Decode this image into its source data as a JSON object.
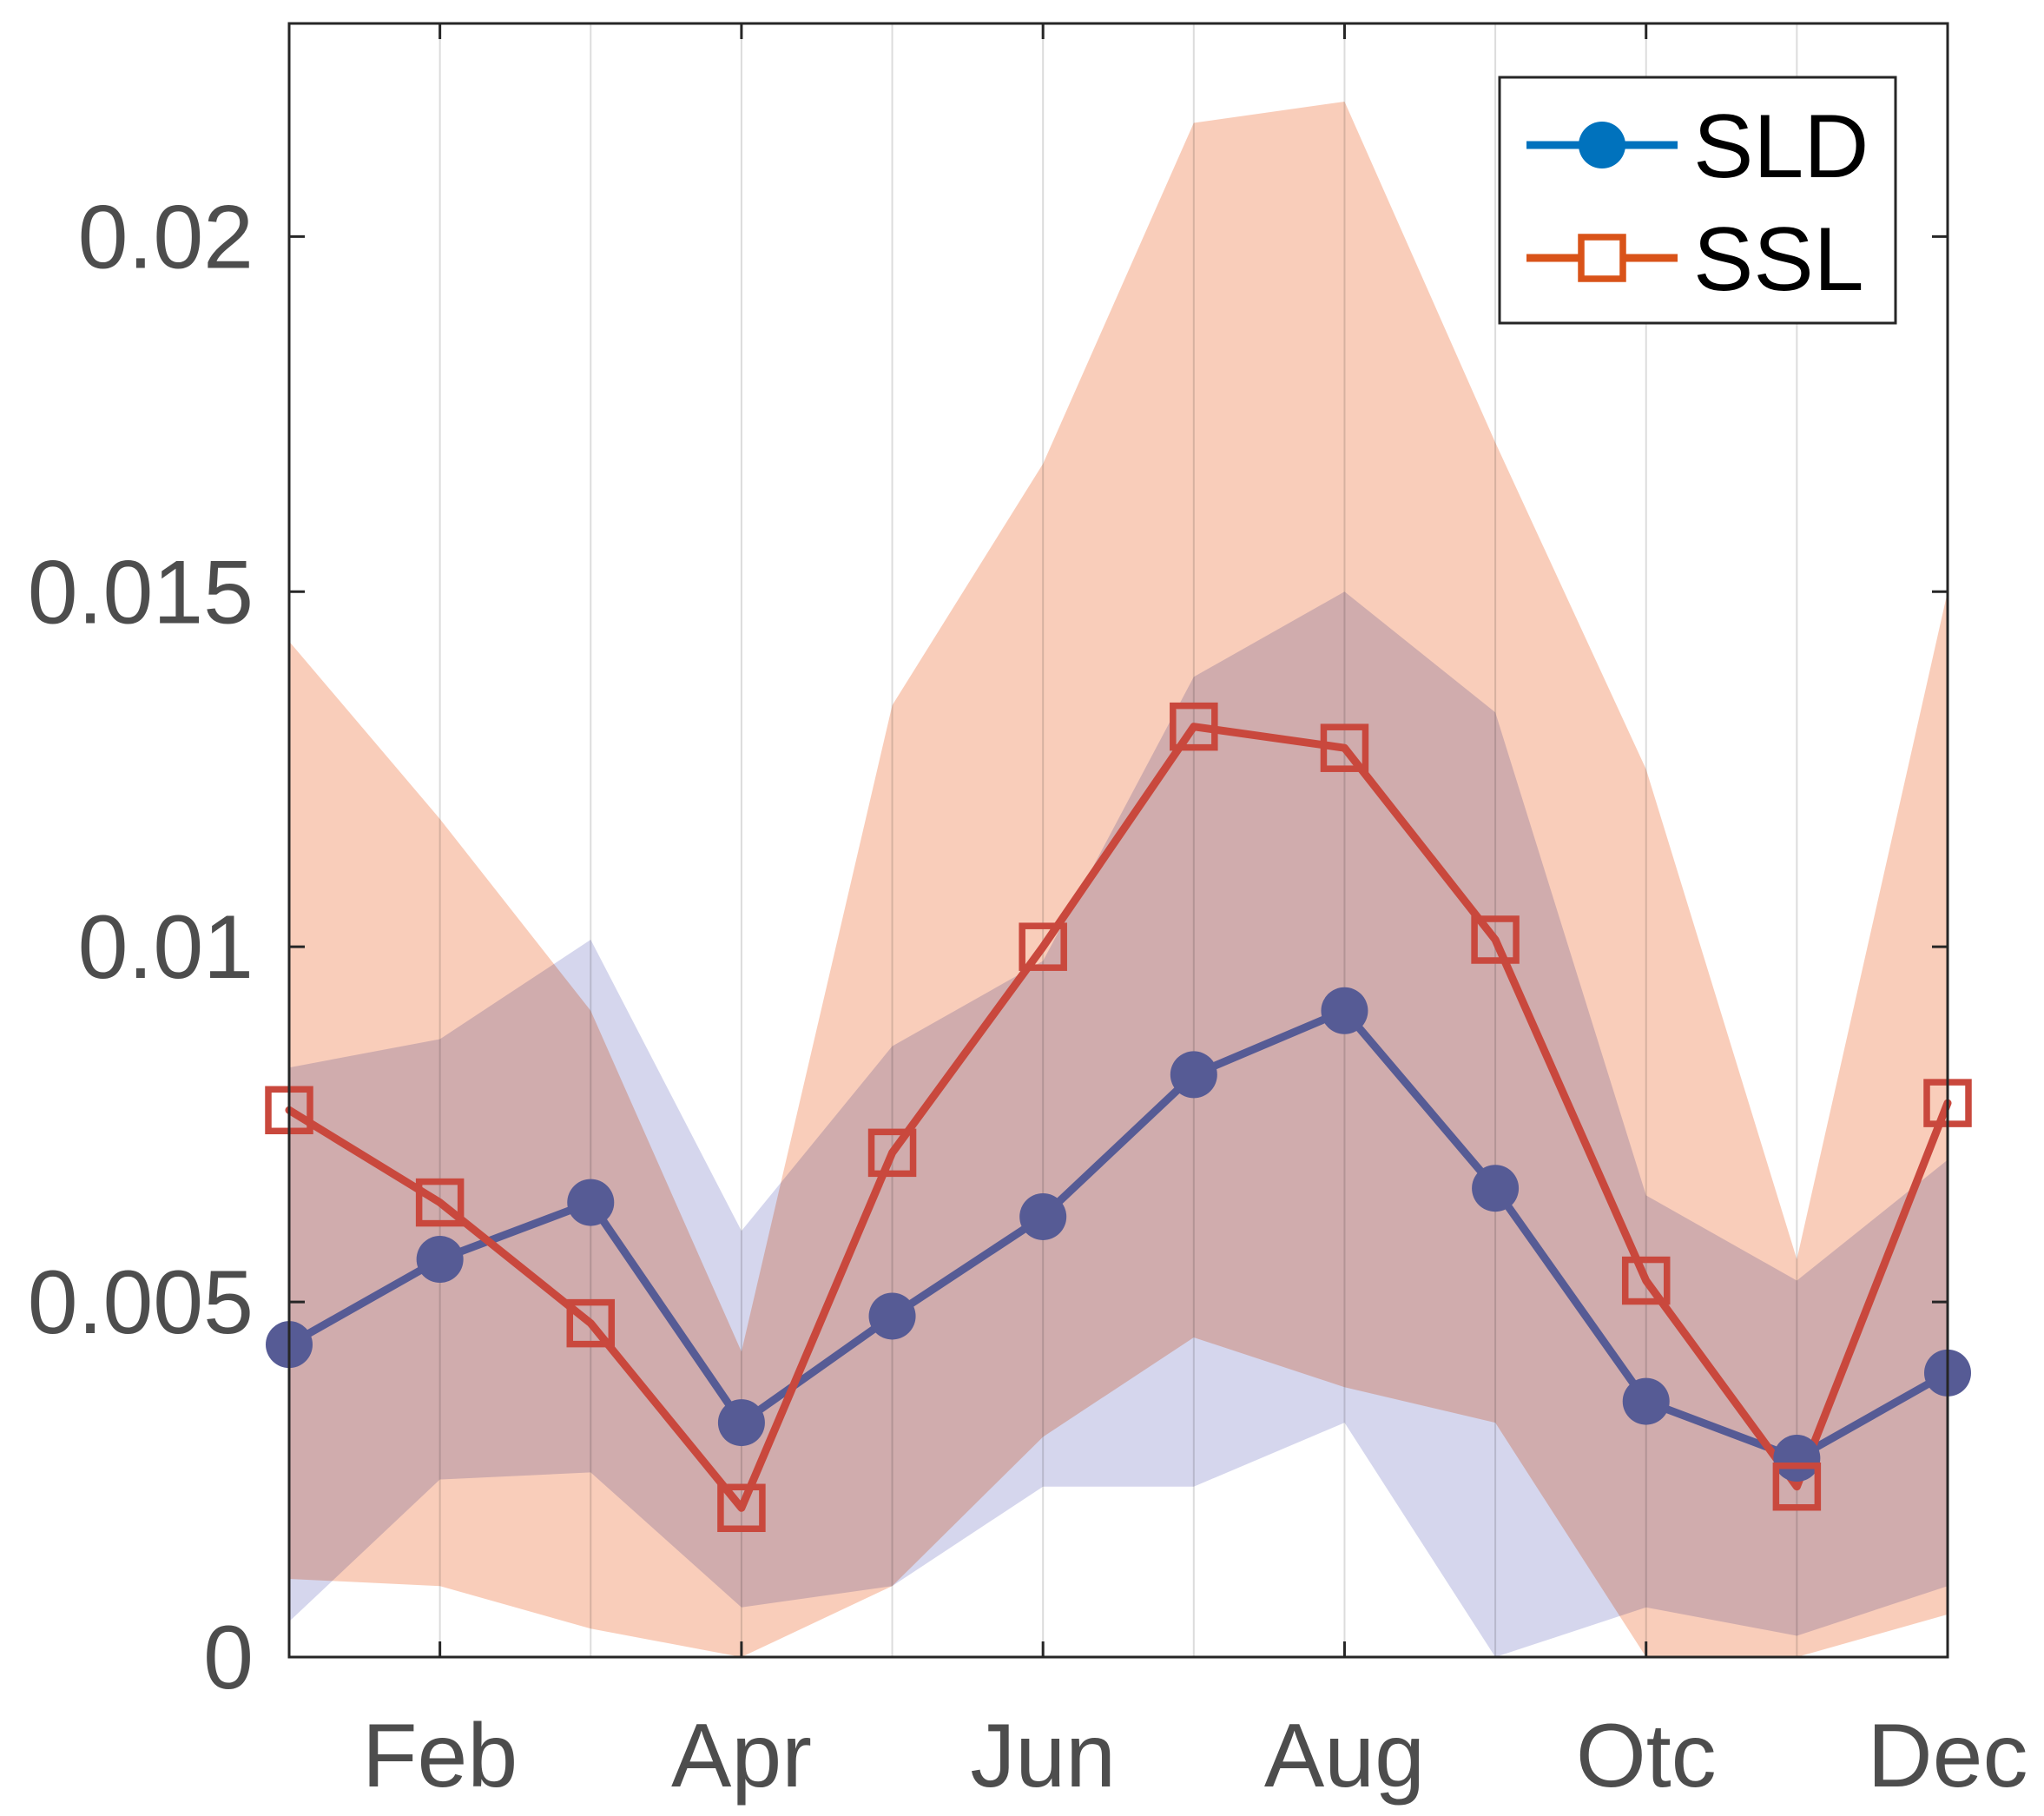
{
  "chart_data": {
    "type": "line",
    "title": "",
    "xlabel": "",
    "ylabel": "",
    "x": [
      1,
      2,
      3,
      4,
      5,
      6,
      7,
      8,
      9,
      10,
      11,
      12
    ],
    "xlim": [
      1,
      12
    ],
    "ylim": [
      0,
      0.023
    ],
    "x_ticks": [
      2,
      4,
      6,
      8,
      10,
      12
    ],
    "x_tick_labels": [
      "Feb",
      "Apr",
      "Jun",
      "Aug",
      "Otc",
      "Dec"
    ],
    "y_ticks": [
      0,
      0.005,
      0.01,
      0.015,
      0.02
    ],
    "y_tick_labels": [
      "0",
      "0.005",
      "0.01",
      "0.015",
      "0.02"
    ],
    "grid": "vertical",
    "legend_position": "top-right",
    "series": [
      {
        "name": "SLD",
        "marker": "circle",
        "color": "#565b95",
        "legend_color": "#0072bd",
        "values": [
          0.0044,
          0.0056,
          0.0064,
          0.0033,
          0.0048,
          0.0062,
          0.0082,
          0.0091,
          0.0066,
          0.0036,
          0.0028,
          0.004
        ],
        "band_upper": [
          0.0083,
          0.0087,
          0.0101,
          0.006,
          0.0086,
          0.0098,
          0.0138,
          0.015,
          0.0133,
          0.0065,
          0.0053,
          0.007
        ],
        "band_lower": [
          0.0005,
          0.0025,
          0.0026,
          0.0007,
          0.001,
          0.0024,
          0.0024,
          0.0033,
          0.0,
          0.0007,
          0.0003,
          0.001
        ],
        "band_color": "#c9cbe8"
      },
      {
        "name": "SSL",
        "marker": "square",
        "color": "#c9483d",
        "legend_color": "#d95319",
        "values": [
          0.0077,
          0.0064,
          0.0047,
          0.0021,
          0.0071,
          0.01,
          0.0131,
          0.0128,
          0.0101,
          0.0053,
          0.0024,
          0.0078
        ],
        "band_upper": [
          0.0143,
          0.0118,
          0.0091,
          0.0043,
          0.0134,
          0.0168,
          0.0216,
          0.0219,
          0.0171,
          0.0125,
          0.0056,
          0.015
        ],
        "band_lower": [
          0.0011,
          0.001,
          0.0004,
          0.0,
          0.001,
          0.0031,
          0.0045,
          0.0038,
          0.0033,
          0.0,
          0.0,
          0.0006
        ],
        "band_color": "#f6baa0"
      }
    ]
  }
}
